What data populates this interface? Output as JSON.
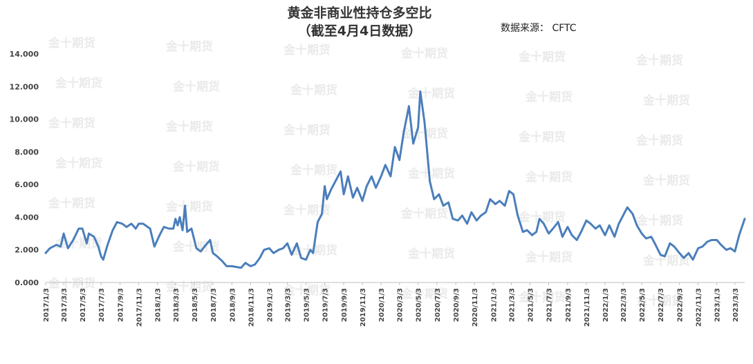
{
  "header": {
    "title_line1": "黄金非商业性持仓多空比",
    "title_line2": "（截至4月4日数据）",
    "source": "数据来源： CFTC"
  },
  "watermark": "金十期货",
  "colors": {
    "line": "#4a7ebb",
    "axis": "#bfbfbf",
    "text": "#444444",
    "watermark": "#d9d9d9"
  },
  "chart_data": {
    "type": "line",
    "title": "黄金非商业性持仓多空比",
    "subtitle": "（截至4月4日数据）",
    "source": "数据来源： CFTC",
    "ylim": [
      0,
      14
    ],
    "y_ticks": [
      "0.000",
      "2.000",
      "4.000",
      "6.000",
      "8.000",
      "10.000",
      "12.000",
      "14.000"
    ],
    "x_ticks": [
      "2017/1/3",
      "2017/3/3",
      "2017/5/3",
      "2017/7/3",
      "2017/9/3",
      "2017/11/3",
      "2018/1/3",
      "2018/3/3",
      "2018/5/3",
      "2018/7/3",
      "2018/9/3",
      "2018/11/3",
      "2019/1/3",
      "2019/3/3",
      "2019/5/3",
      "2019/7/3",
      "2019/9/3",
      "2019/11/3",
      "2020/1/3",
      "2020/3/3",
      "2020/5/3",
      "2020/7/3",
      "2020/9/3",
      "2020/11/3",
      "2021/1/3",
      "2021/3/3",
      "2021/5/3",
      "2021/7/3",
      "2021/9/3",
      "2021/11/3",
      "2022/1/3",
      "2022/3/3",
      "2022/5/3",
      "2022/7/3",
      "2022/9/3",
      "2022/11/3",
      "2023/1/3",
      "2023/3/3"
    ],
    "grid": false,
    "legend": "none",
    "series": [
      {
        "points": [
          [
            "2017-01-03",
            1.8
          ],
          [
            "2017-01-17",
            2.1
          ],
          [
            "2017-02-07",
            2.3
          ],
          [
            "2017-02-21",
            2.2
          ],
          [
            "2017-03-03",
            3.0
          ],
          [
            "2017-03-17",
            2.1
          ],
          [
            "2017-04-03",
            2.6
          ],
          [
            "2017-04-21",
            3.3
          ],
          [
            "2017-05-03",
            3.3
          ],
          [
            "2017-05-17",
            2.4
          ],
          [
            "2017-05-24",
            3.0
          ],
          [
            "2017-06-10",
            2.8
          ],
          [
            "2017-06-24",
            2.2
          ],
          [
            "2017-07-03",
            1.6
          ],
          [
            "2017-07-10",
            1.4
          ],
          [
            "2017-07-24",
            2.3
          ],
          [
            "2017-08-10",
            3.2
          ],
          [
            "2017-08-24",
            3.7
          ],
          [
            "2017-09-10",
            3.6
          ],
          [
            "2017-09-24",
            3.4
          ],
          [
            "2017-10-10",
            3.6
          ],
          [
            "2017-10-24",
            3.3
          ],
          [
            "2017-11-03",
            3.6
          ],
          [
            "2017-11-17",
            3.6
          ],
          [
            "2017-12-10",
            3.3
          ],
          [
            "2017-12-24",
            2.2
          ],
          [
            "2018-01-10",
            2.9
          ],
          [
            "2018-01-24",
            3.4
          ],
          [
            "2018-02-10",
            3.3
          ],
          [
            "2018-02-24",
            3.3
          ],
          [
            "2018-03-03",
            3.9
          ],
          [
            "2018-03-10",
            3.5
          ],
          [
            "2018-03-17",
            4.0
          ],
          [
            "2018-03-26",
            3.2
          ],
          [
            "2018-04-03",
            4.7
          ],
          [
            "2018-04-10",
            3.1
          ],
          [
            "2018-04-24",
            3.3
          ],
          [
            "2018-05-10",
            2.1
          ],
          [
            "2018-05-24",
            1.9
          ],
          [
            "2018-06-10",
            2.3
          ],
          [
            "2018-06-24",
            2.6
          ],
          [
            "2018-07-03",
            1.8
          ],
          [
            "2018-07-17",
            1.6
          ],
          [
            "2018-08-03",
            1.3
          ],
          [
            "2018-08-17",
            1.0
          ],
          [
            "2018-09-03",
            1.0
          ],
          [
            "2018-09-17",
            0.95
          ],
          [
            "2018-10-03",
            0.9
          ],
          [
            "2018-10-17",
            1.2
          ],
          [
            "2018-11-03",
            1.0
          ],
          [
            "2018-11-17",
            1.1
          ],
          [
            "2018-12-03",
            1.5
          ],
          [
            "2018-12-17",
            2.0
          ],
          [
            "2019-01-03",
            2.1
          ],
          [
            "2019-01-17",
            1.8
          ],
          [
            "2019-02-03",
            2.0
          ],
          [
            "2019-02-17",
            2.1
          ],
          [
            "2019-03-03",
            2.4
          ],
          [
            "2019-03-17",
            1.7
          ],
          [
            "2019-04-03",
            2.4
          ],
          [
            "2019-04-17",
            1.5
          ],
          [
            "2019-05-03",
            1.4
          ],
          [
            "2019-05-17",
            2.0
          ],
          [
            "2019-05-26",
            1.8
          ],
          [
            "2019-06-10",
            3.7
          ],
          [
            "2019-06-24",
            4.2
          ],
          [
            "2019-07-03",
            5.9
          ],
          [
            "2019-07-10",
            5.1
          ],
          [
            "2019-07-24",
            5.7
          ],
          [
            "2019-08-10",
            6.3
          ],
          [
            "2019-08-24",
            6.8
          ],
          [
            "2019-09-03",
            5.4
          ],
          [
            "2019-09-17",
            6.5
          ],
          [
            "2019-10-03",
            5.2
          ],
          [
            "2019-10-17",
            5.8
          ],
          [
            "2019-11-03",
            5.0
          ],
          [
            "2019-11-17",
            5.9
          ],
          [
            "2019-12-03",
            6.5
          ],
          [
            "2019-12-17",
            5.8
          ],
          [
            "2020-01-03",
            6.5
          ],
          [
            "2020-01-17",
            7.2
          ],
          [
            "2020-02-03",
            6.5
          ],
          [
            "2020-02-17",
            8.3
          ],
          [
            "2020-03-03",
            7.5
          ],
          [
            "2020-03-17",
            9.2
          ],
          [
            "2020-04-03",
            10.8
          ],
          [
            "2020-04-17",
            8.5
          ],
          [
            "2020-05-03",
            9.5
          ],
          [
            "2020-05-10",
            11.7
          ],
          [
            "2020-05-24",
            9.8
          ],
          [
            "2020-06-10",
            6.2
          ],
          [
            "2020-06-24",
            5.1
          ],
          [
            "2020-07-10",
            5.4
          ],
          [
            "2020-07-24",
            4.7
          ],
          [
            "2020-08-10",
            4.9
          ],
          [
            "2020-08-24",
            3.9
          ],
          [
            "2020-09-10",
            3.8
          ],
          [
            "2020-09-24",
            4.1
          ],
          [
            "2020-10-10",
            3.6
          ],
          [
            "2020-10-24",
            4.3
          ],
          [
            "2020-11-10",
            3.8
          ],
          [
            "2020-11-24",
            4.1
          ],
          [
            "2020-12-10",
            4.3
          ],
          [
            "2020-12-24",
            5.1
          ],
          [
            "2021-01-10",
            4.8
          ],
          [
            "2021-01-24",
            5.0
          ],
          [
            "2021-02-10",
            4.7
          ],
          [
            "2021-02-24",
            5.6
          ],
          [
            "2021-03-10",
            5.4
          ],
          [
            "2021-03-24",
            4.1
          ],
          [
            "2021-04-10",
            3.1
          ],
          [
            "2021-04-24",
            3.2
          ],
          [
            "2021-05-10",
            2.9
          ],
          [
            "2021-05-24",
            3.1
          ],
          [
            "2021-06-03",
            3.9
          ],
          [
            "2021-06-17",
            3.6
          ],
          [
            "2021-07-03",
            3.0
          ],
          [
            "2021-07-17",
            3.3
          ],
          [
            "2021-08-03",
            3.7
          ],
          [
            "2021-08-17",
            2.8
          ],
          [
            "2021-09-03",
            3.4
          ],
          [
            "2021-09-17",
            2.9
          ],
          [
            "2021-10-03",
            2.6
          ],
          [
            "2021-10-17",
            3.1
          ],
          [
            "2021-11-03",
            3.8
          ],
          [
            "2021-11-17",
            3.6
          ],
          [
            "2021-12-03",
            3.3
          ],
          [
            "2021-12-17",
            3.5
          ],
          [
            "2022-01-03",
            2.9
          ],
          [
            "2022-01-17",
            3.5
          ],
          [
            "2022-02-03",
            2.8
          ],
          [
            "2022-02-17",
            3.6
          ],
          [
            "2022-03-03",
            4.1
          ],
          [
            "2022-03-17",
            4.6
          ],
          [
            "2022-04-03",
            4.2
          ],
          [
            "2022-04-17",
            3.5
          ],
          [
            "2022-05-03",
            3.0
          ],
          [
            "2022-05-17",
            2.7
          ],
          [
            "2022-06-03",
            2.8
          ],
          [
            "2022-06-17",
            2.3
          ],
          [
            "2022-07-03",
            1.7
          ],
          [
            "2022-07-17",
            1.6
          ],
          [
            "2022-08-03",
            2.4
          ],
          [
            "2022-08-17",
            2.2
          ],
          [
            "2022-09-03",
            1.8
          ],
          [
            "2022-09-17",
            1.5
          ],
          [
            "2022-10-03",
            1.8
          ],
          [
            "2022-10-17",
            1.4
          ],
          [
            "2022-11-03",
            2.1
          ],
          [
            "2022-11-17",
            2.2
          ],
          [
            "2022-12-03",
            2.5
          ],
          [
            "2022-12-17",
            2.6
          ],
          [
            "2023-01-03",
            2.6
          ],
          [
            "2023-01-17",
            2.3
          ],
          [
            "2023-02-03",
            2.0
          ],
          [
            "2023-02-17",
            2.1
          ],
          [
            "2023-03-03",
            1.9
          ],
          [
            "2023-03-17",
            2.9
          ],
          [
            "2023-04-04",
            3.9
          ]
        ]
      }
    ]
  }
}
